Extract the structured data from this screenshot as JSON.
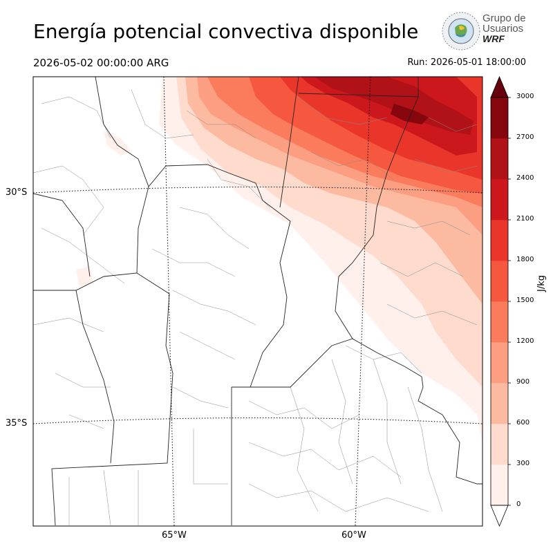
{
  "header": {
    "title": "Energía potencial convectiva disponible",
    "valid_time": "2026-05-02 00:00:00 ARG",
    "run_time": "Run: 2026-05-01 18:00:00"
  },
  "logo": {
    "line1": "Grupo de",
    "line2": "Usuarios",
    "line3": "WRF"
  },
  "map": {
    "variable": "CAPE",
    "lat_labels": [
      "30°S",
      "35°S"
    ],
    "lon_labels": [
      "65°W",
      "60°W"
    ],
    "meridians_deg_w": [
      65,
      60
    ],
    "parallels_deg_s": [
      30,
      35
    ],
    "field_description_levels_present": [
      0,
      300,
      600,
      900,
      1200,
      1500,
      1800,
      2100,
      2400,
      2700
    ]
  },
  "colorbar": {
    "unit": "J/kg",
    "ticks": [
      "3000",
      "2700",
      "2400",
      "2100",
      "1800",
      "1500",
      "1200",
      "900",
      "600",
      "300",
      "0"
    ],
    "levels": [
      0,
      300,
      600,
      900,
      1200,
      1500,
      1800,
      2100,
      2400,
      2700,
      3000
    ],
    "colors": [
      "#fff0eb",
      "#fedbcc",
      "#fcbba1",
      "#fc9e81",
      "#fb7c5c",
      "#f5573f",
      "#ea362a",
      "#cc181c",
      "#b01217",
      "#85070d"
    ],
    "extend_top_color": "#67000d",
    "extend_bottom_color": "#ffffff"
  }
}
